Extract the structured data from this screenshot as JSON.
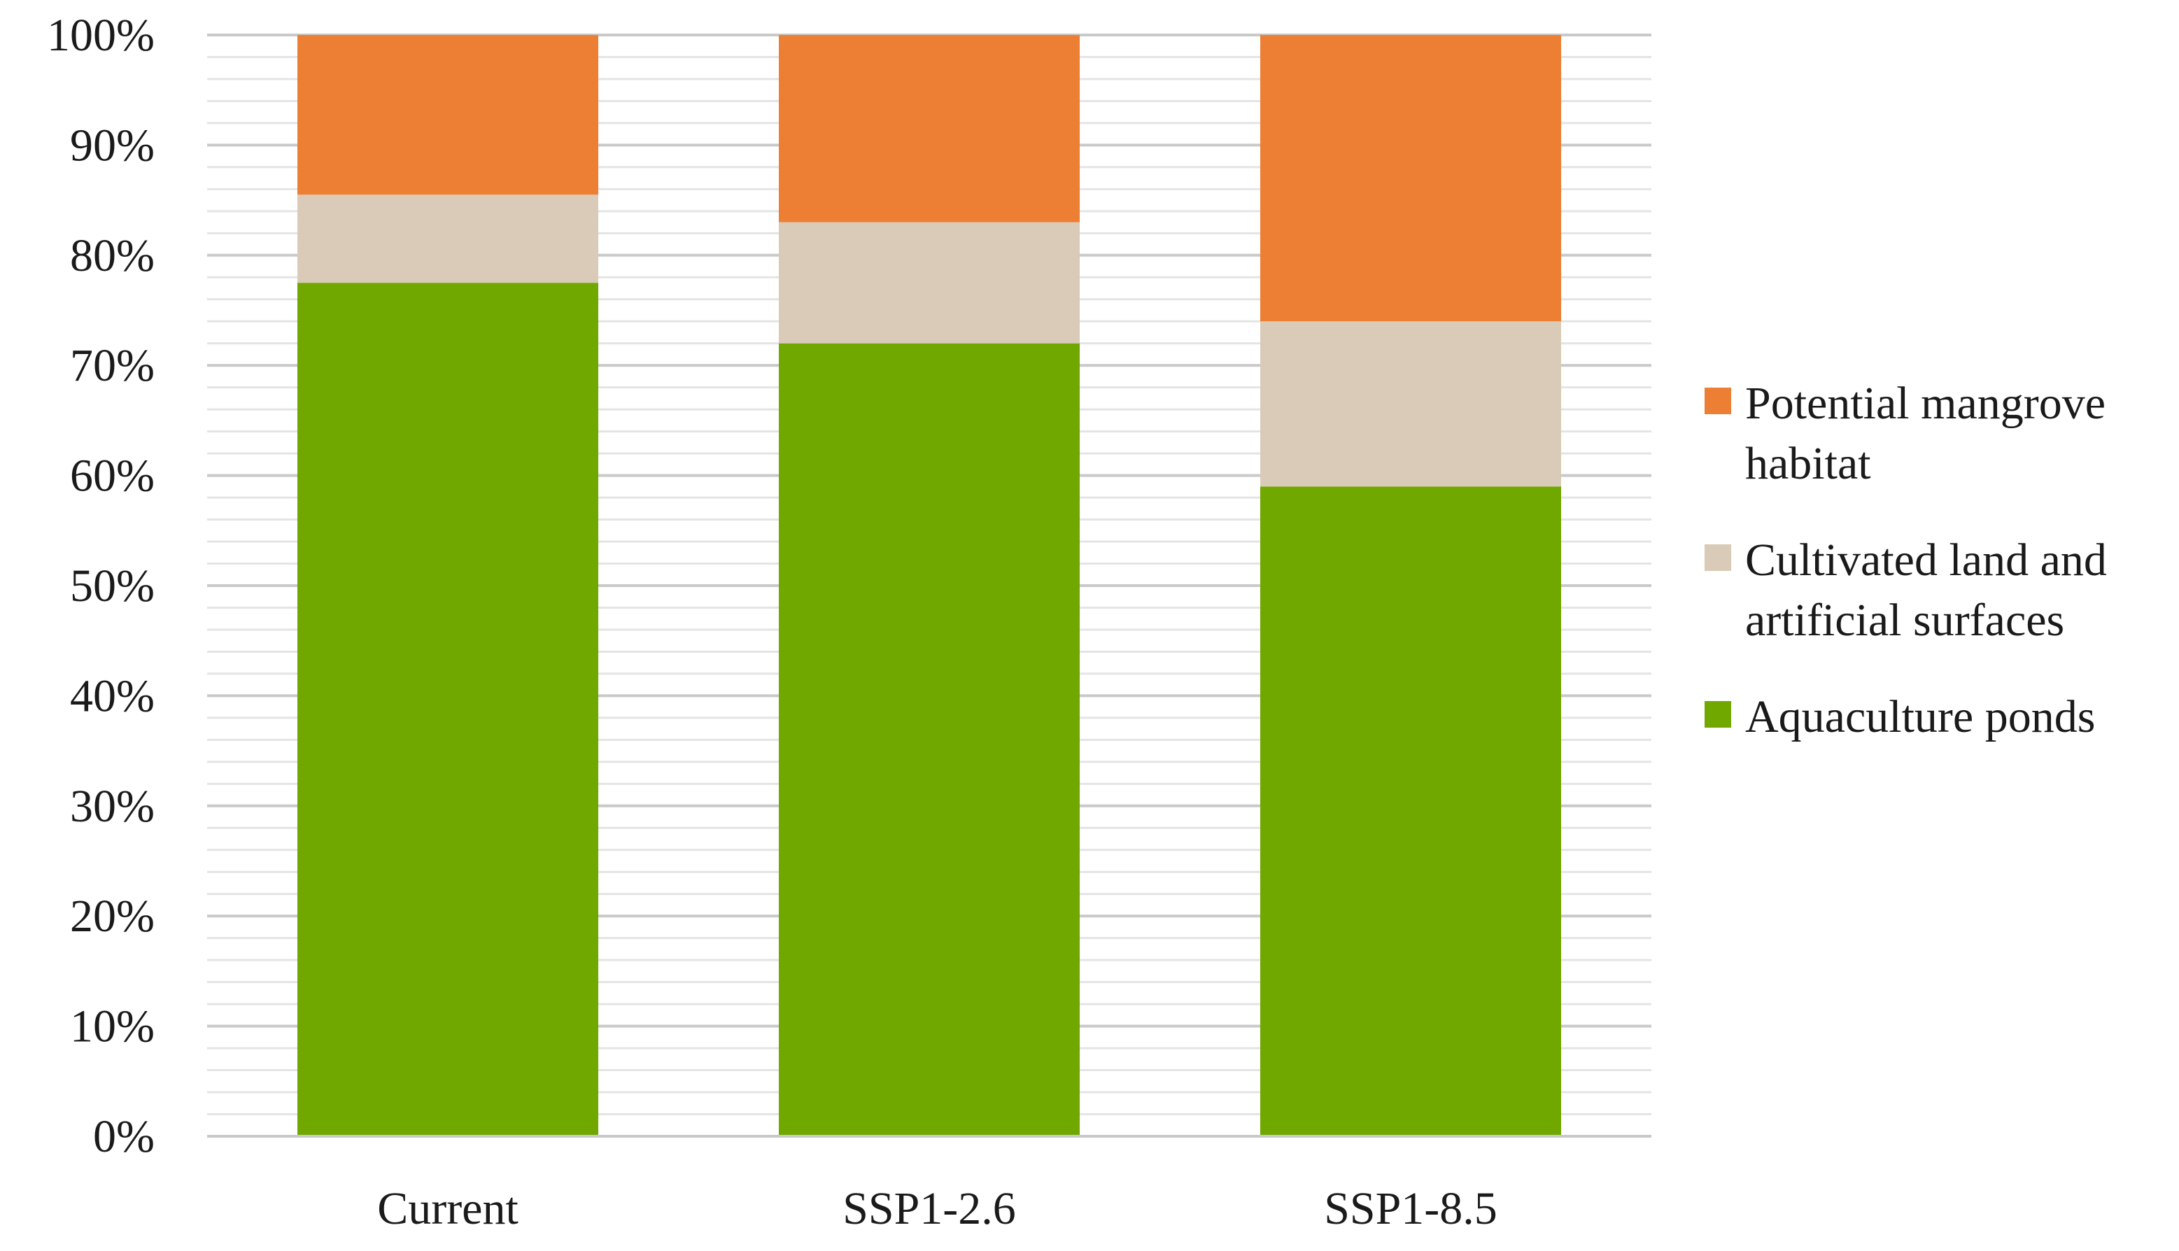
{
  "chart_data": {
    "type": "bar",
    "stacked": true,
    "percent_stacked": true,
    "categories": [
      "Current",
      "SSP1-2.6",
      "SSP1-8.5"
    ],
    "series": [
      {
        "name": "Aquaculture ponds",
        "values": [
          77.5,
          72.0,
          59.0
        ]
      },
      {
        "name": "Cultivated land and artificial surfaces",
        "values": [
          8.0,
          11.0,
          15.0
        ]
      },
      {
        "name": "Potential mangrove habitat",
        "values": [
          14.5,
          17.0,
          26.0
        ]
      }
    ],
    "ylim": [
      0,
      100
    ],
    "yticks": [
      "0%",
      "10%",
      "20%",
      "30%",
      "40%",
      "50%",
      "60%",
      "70%",
      "80%",
      "90%",
      "100%"
    ],
    "title": "",
    "xlabel": "",
    "ylabel": "",
    "grid": true,
    "legend_position": "right",
    "legend_order": [
      "Potential mangrove habitat",
      "Cultivated land and artificial surfaces",
      "Aquaculture ponds"
    ],
    "legend_labels": [
      [
        "Potential mangrove",
        "habitat"
      ],
      [
        "Cultivated land and",
        "artificial surfaces"
      ],
      [
        "Aquaculture ponds"
      ]
    ],
    "colors": {
      "Aquaculture ponds": "#70A800",
      "Cultivated land and artificial surfaces": "#D9CBB7",
      "Potential mangrove habitat": "#ED7F34"
    }
  }
}
